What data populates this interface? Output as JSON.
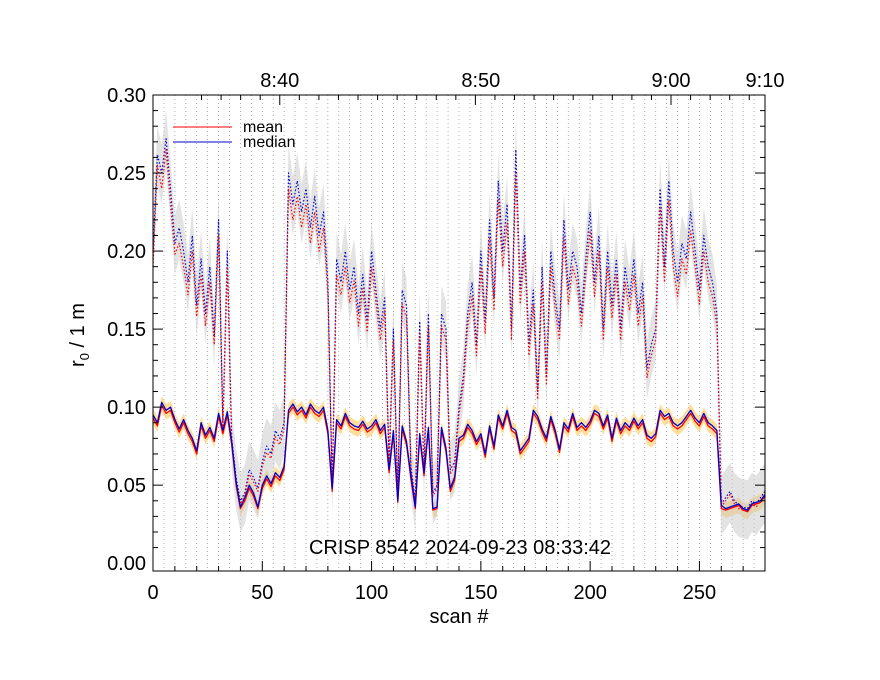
{
  "chart_data": {
    "type": "line",
    "title": "",
    "annotation": "CRISP 8542 2024-09-23 08:33:42",
    "xlabel": "scan #",
    "ylabel": "r",
    "ylabel_sub": "0",
    "ylabel_suffix": " / 1 m",
    "xlim": [
      0,
      280
    ],
    "ylim": [
      -0.005,
      0.3
    ],
    "x_ticks": [
      0,
      50,
      100,
      150,
      200,
      250
    ],
    "x_tick_labels": [
      "0",
      "50",
      "100",
      "150",
      "200",
      "250"
    ],
    "y_ticks": [
      0.0,
      0.05,
      0.1,
      0.15,
      0.2,
      0.25,
      0.3
    ],
    "y_tick_labels": [
      "0.00",
      "0.05",
      "0.10",
      "0.15",
      "0.20",
      "0.25",
      "0.30"
    ],
    "top_axis": {
      "tick_labels": [
        "8:40",
        "8:50",
        "9:00",
        "9:10"
      ],
      "tick_positions_scan": [
        58,
        150,
        237,
        280
      ]
    },
    "grid_x_spacing_scans": 5,
    "legend": {
      "position": "top-left",
      "entries": [
        {
          "label": "mean",
          "color": "#ff0000"
        },
        {
          "label": "median",
          "color": "#0000cc"
        }
      ]
    },
    "colors": {
      "mean": "#ff0000",
      "median": "#0000cc",
      "band_low": "#ffd070",
      "band_high": "#c8c8c8"
    },
    "x_nodes": [
      0,
      2,
      4,
      6,
      8,
      10,
      12,
      14,
      16,
      18,
      20,
      22,
      24,
      26,
      28,
      30,
      32,
      34,
      36,
      38,
      40,
      42,
      44,
      46,
      48,
      50,
      52,
      54,
      56,
      58,
      60,
      62,
      64,
      66,
      68,
      70,
      72,
      74,
      76,
      78,
      80,
      82,
      84,
      86,
      88,
      90,
      92,
      94,
      96,
      98,
      100,
      102,
      104,
      106,
      108,
      110,
      112,
      114,
      116,
      118,
      120,
      122,
      124,
      126,
      128,
      130,
      132,
      134,
      136,
      138,
      140,
      142,
      144,
      146,
      148,
      150,
      152,
      154,
      156,
      158,
      160,
      162,
      164,
      166,
      168,
      170,
      172,
      174,
      176,
      178,
      180,
      182,
      184,
      186,
      188,
      190,
      192,
      194,
      196,
      198,
      200,
      202,
      204,
      206,
      208,
      210,
      212,
      214,
      216,
      218,
      220,
      222,
      224,
      226,
      228,
      230,
      232,
      234,
      236,
      238,
      240,
      242,
      244,
      246,
      248,
      250,
      252,
      254,
      256,
      258,
      260,
      262,
      264,
      266,
      268,
      270,
      272,
      274,
      276,
      278,
      280
    ],
    "series": [
      {
        "name": "median (low-order r0)",
        "color": "#0000cc",
        "style": "solid",
        "values": [
          0.095,
          0.09,
          0.103,
          0.098,
          0.1,
          0.092,
          0.086,
          0.092,
          0.085,
          0.08,
          0.072,
          0.09,
          0.082,
          0.087,
          0.08,
          0.096,
          0.085,
          0.097,
          0.078,
          0.052,
          0.036,
          0.042,
          0.05,
          0.045,
          0.036,
          0.05,
          0.056,
          0.051,
          0.058,
          0.055,
          0.062,
          0.098,
          0.102,
          0.097,
          0.1,
          0.095,
          0.102,
          0.098,
          0.096,
          0.1,
          0.085,
          0.048,
          0.092,
          0.088,
          0.096,
          0.09,
          0.088,
          0.087,
          0.091,
          0.086,
          0.088,
          0.092,
          0.085,
          0.089,
          0.06,
          0.085,
          0.04,
          0.088,
          0.078,
          0.056,
          0.036,
          0.083,
          0.058,
          0.087,
          0.035,
          0.036,
          0.087,
          0.074,
          0.048,
          0.055,
          0.08,
          0.082,
          0.089,
          0.085,
          0.078,
          0.083,
          0.07,
          0.088,
          0.075,
          0.095,
          0.088,
          0.098,
          0.087,
          0.085,
          0.072,
          0.076,
          0.08,
          0.098,
          0.094,
          0.086,
          0.08,
          0.094,
          0.085,
          0.073,
          0.09,
          0.086,
          0.096,
          0.087,
          0.09,
          0.087,
          0.091,
          0.098,
          0.096,
          0.088,
          0.095,
          0.08,
          0.093,
          0.085,
          0.09,
          0.087,
          0.093,
          0.088,
          0.092,
          0.082,
          0.08,
          0.083,
          0.098,
          0.094,
          0.096,
          0.09,
          0.088,
          0.09,
          0.094,
          0.098,
          0.093,
          0.09,
          0.096,
          0.09,
          0.088,
          0.085,
          0.037,
          0.035,
          0.036,
          0.037,
          0.038,
          0.035,
          0.034,
          0.038,
          0.039,
          0.04,
          0.044
        ]
      },
      {
        "name": "mean (low-order r0)",
        "color": "#ff0000",
        "style": "solid",
        "values": [
          0.093,
          0.088,
          0.101,
          0.096,
          0.098,
          0.09,
          0.084,
          0.09,
          0.083,
          0.078,
          0.07,
          0.088,
          0.08,
          0.085,
          0.078,
          0.094,
          0.083,
          0.095,
          0.076,
          0.05,
          0.035,
          0.04,
          0.048,
          0.043,
          0.035,
          0.048,
          0.054,
          0.049,
          0.056,
          0.053,
          0.06,
          0.096,
          0.1,
          0.095,
          0.098,
          0.093,
          0.1,
          0.096,
          0.094,
          0.098,
          0.083,
          0.046,
          0.09,
          0.086,
          0.094,
          0.088,
          0.086,
          0.085,
          0.089,
          0.084,
          0.086,
          0.09,
          0.083,
          0.087,
          0.058,
          0.083,
          0.039,
          0.086,
          0.076,
          0.054,
          0.035,
          0.081,
          0.056,
          0.085,
          0.034,
          0.035,
          0.085,
          0.072,
          0.046,
          0.053,
          0.078,
          0.08,
          0.087,
          0.083,
          0.076,
          0.081,
          0.068,
          0.086,
          0.073,
          0.093,
          0.086,
          0.096,
          0.085,
          0.083,
          0.07,
          0.074,
          0.078,
          0.096,
          0.092,
          0.084,
          0.078,
          0.092,
          0.083,
          0.071,
          0.088,
          0.084,
          0.094,
          0.085,
          0.088,
          0.085,
          0.089,
          0.096,
          0.094,
          0.086,
          0.093,
          0.078,
          0.091,
          0.083,
          0.088,
          0.085,
          0.091,
          0.086,
          0.09,
          0.08,
          0.078,
          0.081,
          0.096,
          0.092,
          0.094,
          0.088,
          0.086,
          0.088,
          0.092,
          0.096,
          0.091,
          0.088,
          0.094,
          0.088,
          0.086,
          0.083,
          0.035,
          0.034,
          0.035,
          0.036,
          0.037,
          0.034,
          0.033,
          0.037,
          0.038,
          0.039,
          0.043
        ]
      },
      {
        "name": "median (high-order r0)",
        "color": "#0000cc",
        "style": "dotted",
        "values": [
          0.2,
          0.262,
          0.25,
          0.272,
          0.24,
          0.205,
          0.215,
          0.2,
          0.18,
          0.21,
          0.165,
          0.195,
          0.16,
          0.19,
          0.145,
          0.22,
          0.09,
          0.2,
          0.08,
          0.055,
          0.04,
          0.045,
          0.06,
          0.055,
          0.048,
          0.065,
          0.075,
          0.07,
          0.085,
          0.08,
          0.09,
          0.25,
          0.23,
          0.245,
          0.225,
          0.24,
          0.215,
          0.235,
          0.21,
          0.225,
          0.18,
          0.05,
          0.195,
          0.18,
          0.2,
          0.175,
          0.19,
          0.16,
          0.185,
          0.155,
          0.2,
          0.175,
          0.15,
          0.17,
          0.065,
          0.15,
          0.045,
          0.175,
          0.165,
          0.062,
          0.04,
          0.155,
          0.06,
          0.16,
          0.045,
          0.05,
          0.16,
          0.15,
          0.06,
          0.065,
          0.1,
          0.12,
          0.16,
          0.18,
          0.14,
          0.2,
          0.155,
          0.22,
          0.17,
          0.245,
          0.2,
          0.23,
          0.15,
          0.265,
          0.175,
          0.21,
          0.14,
          0.175,
          0.11,
          0.19,
          0.12,
          0.2,
          0.17,
          0.15,
          0.22,
          0.175,
          0.2,
          0.19,
          0.16,
          0.195,
          0.225,
          0.18,
          0.21,
          0.15,
          0.2,
          0.165,
          0.195,
          0.15,
          0.19,
          0.17,
          0.195,
          0.16,
          0.18,
          0.125,
          0.14,
          0.15,
          0.24,
          0.19,
          0.245,
          0.2,
          0.18,
          0.205,
          0.195,
          0.225,
          0.2,
          0.175,
          0.21,
          0.19,
          0.18,
          0.16,
          0.038,
          0.042,
          0.046,
          0.04,
          0.037,
          0.036,
          0.035,
          0.04,
          0.038,
          0.042,
          0.046
        ]
      },
      {
        "name": "mean (high-order r0)",
        "color": "#ff0000",
        "style": "dotted",
        "values": [
          0.19,
          0.255,
          0.24,
          0.265,
          0.23,
          0.198,
          0.205,
          0.19,
          0.172,
          0.2,
          0.158,
          0.185,
          0.152,
          0.18,
          0.14,
          0.21,
          0.085,
          0.19,
          0.076,
          0.052,
          0.038,
          0.043,
          0.057,
          0.052,
          0.046,
          0.062,
          0.071,
          0.067,
          0.081,
          0.076,
          0.086,
          0.24,
          0.22,
          0.235,
          0.215,
          0.23,
          0.205,
          0.225,
          0.2,
          0.215,
          0.172,
          0.048,
          0.185,
          0.172,
          0.19,
          0.167,
          0.181,
          0.152,
          0.176,
          0.148,
          0.19,
          0.167,
          0.143,
          0.162,
          0.062,
          0.143,
          0.043,
          0.166,
          0.157,
          0.059,
          0.038,
          0.147,
          0.057,
          0.152,
          0.043,
          0.048,
          0.152,
          0.143,
          0.057,
          0.062,
          0.095,
          0.114,
          0.152,
          0.171,
          0.133,
          0.19,
          0.147,
          0.209,
          0.162,
          0.233,
          0.19,
          0.218,
          0.143,
          0.25,
          0.166,
          0.2,
          0.133,
          0.166,
          0.105,
          0.18,
          0.114,
          0.19,
          0.162,
          0.143,
          0.209,
          0.166,
          0.19,
          0.18,
          0.152,
          0.185,
          0.213,
          0.171,
          0.2,
          0.143,
          0.19,
          0.157,
          0.185,
          0.143,
          0.18,
          0.162,
          0.185,
          0.152,
          0.171,
          0.119,
          0.133,
          0.143,
          0.228,
          0.18,
          0.232,
          0.19,
          0.171,
          0.195,
          0.185,
          0.213,
          0.19,
          0.166,
          0.2,
          0.18,
          0.171,
          0.152,
          0.036,
          0.04,
          0.044,
          0.038,
          0.035,
          0.034,
          0.033,
          0.038,
          0.036,
          0.04,
          0.044
        ]
      }
    ],
    "bands": [
      {
        "name": "low-order spread",
        "color": "#ffd070",
        "lower_offset": -0.006,
        "upper_offset": 0.004,
        "of_series": 0
      },
      {
        "name": "high-order spread",
        "color": "#c8c8c8",
        "lower_offset": -0.02,
        "upper_offset": 0.018,
        "of_series": 2
      }
    ]
  }
}
